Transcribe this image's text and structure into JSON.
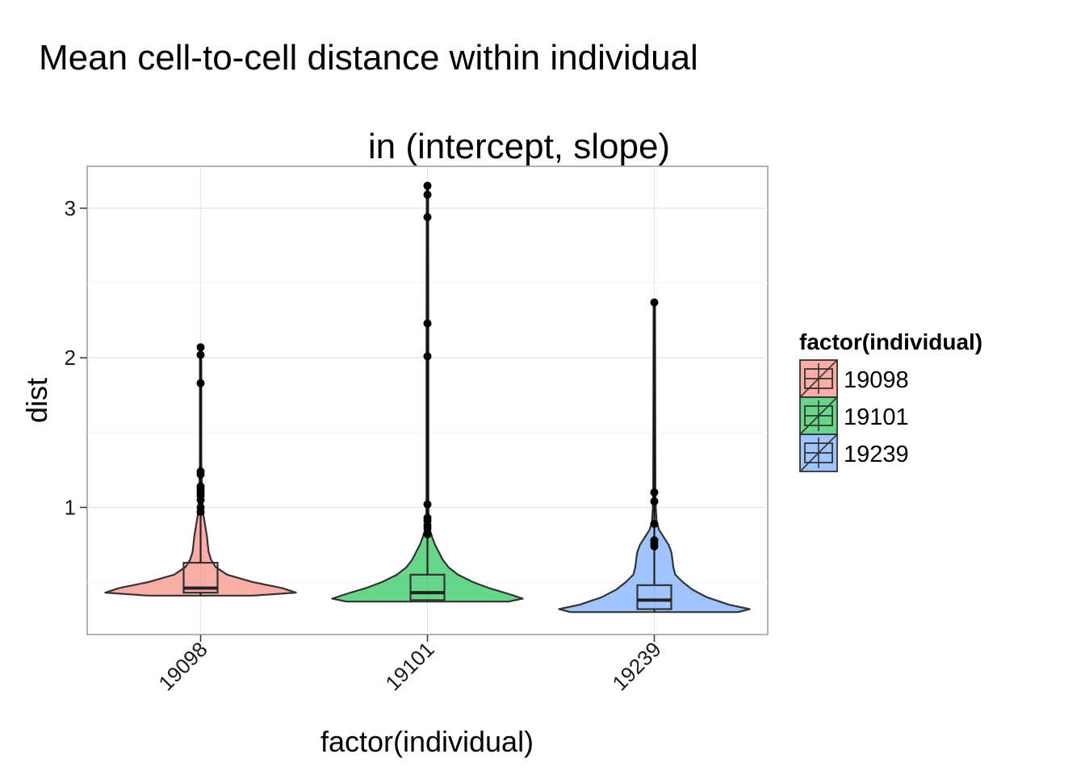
{
  "chart_data": {
    "type": "violin",
    "title_line1": "Mean cell-to-cell distance within individual",
    "title_line2": "in (intercept, slope)",
    "xlabel": "factor(individual)",
    "ylabel": "dist",
    "categories": [
      "19098",
      "19101",
      "19239"
    ],
    "ylim": [
      0.15,
      3.28
    ],
    "yticks": [
      1,
      2,
      3
    ],
    "ytick_labels": [
      "1",
      "2",
      "3"
    ],
    "grid": true,
    "legend": {
      "title": "factor(individual)",
      "position": "right",
      "entries": [
        "19098",
        "19101",
        "19239"
      ]
    },
    "series": [
      {
        "name": "19098",
        "color": "#F8766D",
        "box": {
          "lower_whisker": 0.41,
          "q1": 0.43,
          "median": 0.46,
          "q3": 0.63,
          "upper_whisker": 0.95
        },
        "outliers": [
          0.97,
          1.0,
          1.05,
          1.08,
          1.1,
          1.12,
          1.14,
          1.22,
          1.24,
          1.83,
          2.02,
          2.07
        ],
        "density": [
          [
            0.41,
            0.55
          ],
          [
            0.43,
            1.0
          ],
          [
            0.46,
            0.86
          ],
          [
            0.5,
            0.55
          ],
          [
            0.55,
            0.28
          ],
          [
            0.6,
            0.16
          ],
          [
            0.65,
            0.11
          ],
          [
            0.7,
            0.085
          ],
          [
            0.75,
            0.075
          ],
          [
            0.8,
            0.068
          ],
          [
            0.85,
            0.055
          ],
          [
            0.9,
            0.042
          ],
          [
            0.95,
            0.03
          ],
          [
            1.0,
            0.022
          ],
          [
            1.1,
            0.016
          ],
          [
            1.2,
            0.012
          ],
          [
            1.3,
            0.008
          ],
          [
            1.6,
            0.008
          ],
          [
            2.07,
            0.008
          ]
        ]
      },
      {
        "name": "19101",
        "color": "#00BA38",
        "box": {
          "lower_whisker": 0.37,
          "q1": 0.38,
          "median": 0.43,
          "q3": 0.55,
          "upper_whisker": 0.8
        },
        "outliers": [
          0.82,
          0.86,
          0.88,
          0.91,
          0.93,
          1.02,
          2.01,
          2.23,
          2.94,
          3.09,
          3.15
        ],
        "density": [
          [
            0.37,
            0.85
          ],
          [
            0.39,
            1.0
          ],
          [
            0.42,
            0.86
          ],
          [
            0.46,
            0.65
          ],
          [
            0.5,
            0.48
          ],
          [
            0.55,
            0.32
          ],
          [
            0.6,
            0.22
          ],
          [
            0.65,
            0.16
          ],
          [
            0.7,
            0.12
          ],
          [
            0.75,
            0.08
          ],
          [
            0.8,
            0.05
          ],
          [
            0.85,
            0.025
          ],
          [
            0.9,
            0.015
          ],
          [
            1.0,
            0.01
          ],
          [
            2.0,
            0.01
          ],
          [
            3.15,
            0.008
          ]
        ]
      },
      {
        "name": "19239",
        "color": "#619CFF",
        "box": {
          "lower_whisker": 0.3,
          "q1": 0.32,
          "median": 0.38,
          "q3": 0.48,
          "upper_whisker": 0.72
        },
        "outliers": [
          0.74,
          0.76,
          0.78,
          0.89,
          1.04,
          1.1,
          2.37
        ],
        "density": [
          [
            0.3,
            0.88
          ],
          [
            0.32,
            1.0
          ],
          [
            0.35,
            0.78
          ],
          [
            0.4,
            0.55
          ],
          [
            0.45,
            0.4
          ],
          [
            0.5,
            0.3
          ],
          [
            0.55,
            0.22
          ],
          [
            0.6,
            0.2
          ],
          [
            0.65,
            0.19
          ],
          [
            0.7,
            0.18
          ],
          [
            0.75,
            0.15
          ],
          [
            0.8,
            0.1
          ],
          [
            0.85,
            0.05
          ],
          [
            0.9,
            0.025
          ],
          [
            1.0,
            0.015
          ],
          [
            1.1,
            0.012
          ],
          [
            2.37,
            0.008
          ]
        ]
      }
    ]
  }
}
